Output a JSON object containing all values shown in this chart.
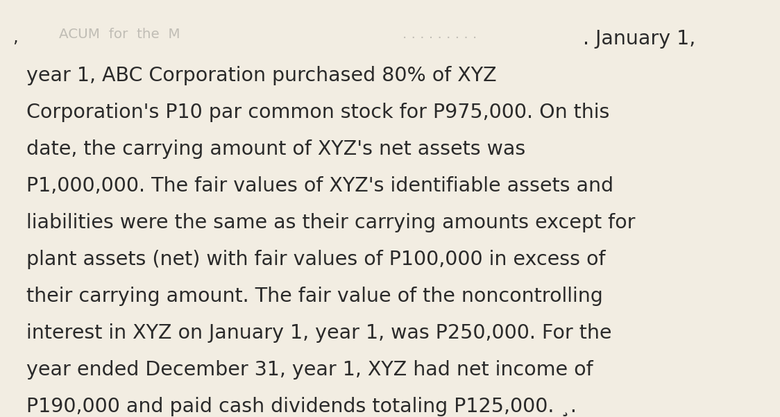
{
  "background_color": "#f2ede2",
  "text_color": "#2a2a2a",
  "font_size": 20.5,
  "font_family": "DejaVu Sans",
  "lines": [
    "year 1, ABC Corporation purchased 80% of XYZ",
    "Corporation's P10 par common stock for P975,000. On this",
    "date, the carrying amount of XYZ's net assets was",
    "P1,000,000. The fair values of XYZ's identifiable assets and",
    "liabilities were the same as their carrying amounts except for",
    "plant assets (net) with fair values of P100,000 in excess of",
    "their carrying amount. The fair value of the noncontrolling",
    "interest in XYZ on January 1, year 1, was P250,000. For the",
    "year ended December 31, year 1, XYZ had net income of",
    "P190,000 and paid cash dividends totaling P125,000. ¸."
  ],
  "blur_text": "ACUM  for  the  M",
  "blur_dots": ". . . . . . . . .",
  "jan_text": ". January 1,",
  "comma_text": ",",
  "figwidth": 11.24,
  "figheight": 6.01,
  "dpi": 100
}
